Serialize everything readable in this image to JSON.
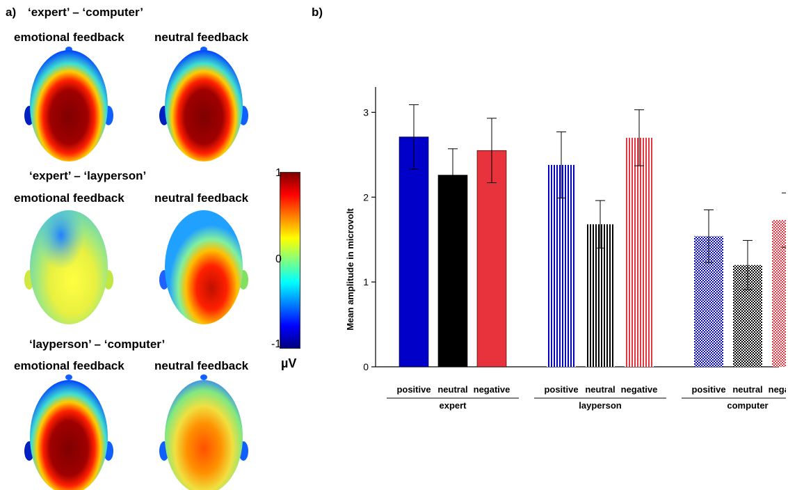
{
  "panel_a": {
    "letter": "a)",
    "rows": [
      {
        "title": "‘expert’ – ‘computer’",
        "left_label": "emotional feedback",
        "right_label": "neutral feedback"
      },
      {
        "title": "‘expert’ – ‘layperson’",
        "left_label": "emotional feedback",
        "right_label": "neutral feedback"
      },
      {
        "title": "‘layperson’ – ‘computer’",
        "left_label": "emotional feedback",
        "right_label": "neutral feedback"
      }
    ],
    "colorbar": {
      "max": "1",
      "mid": "0",
      "min": "-1",
      "unit": "µV",
      "colors": [
        "#00007f",
        "#0000ff",
        "#0080ff",
        "#00ffff",
        "#80ff80",
        "#ffff00",
        "#ff8000",
        "#ff0000",
        "#7f0000"
      ]
    }
  },
  "panel_b": {
    "letter": "b)"
  },
  "chart_data": {
    "type": "bar",
    "ylabel": "Mean amplitude in microvolt",
    "xlabel": "",
    "ylim": [
      0,
      3.2
    ],
    "yticks": [
      0,
      1,
      2,
      3
    ],
    "groups": [
      "expert",
      "layperson",
      "computer"
    ],
    "categories": [
      "positive",
      "neutral",
      "negative"
    ],
    "series": [
      {
        "group": "expert",
        "values": [
          2.71,
          2.26,
          2.55
        ],
        "errors": [
          0.38,
          0.31,
          0.38
        ],
        "pattern": "solid"
      },
      {
        "group": "layperson",
        "values": [
          2.38,
          1.68,
          2.7
        ],
        "errors": [
          0.39,
          0.28,
          0.33
        ],
        "pattern": "vertical-lines"
      },
      {
        "group": "computer",
        "values": [
          1.54,
          1.2,
          1.73
        ],
        "errors": [
          0.31,
          0.29,
          0.32
        ],
        "pattern": "dots"
      }
    ],
    "colors": {
      "positive": "#0000c8",
      "neutral": "#000000",
      "negative": "#e8323c"
    },
    "grid": false
  }
}
